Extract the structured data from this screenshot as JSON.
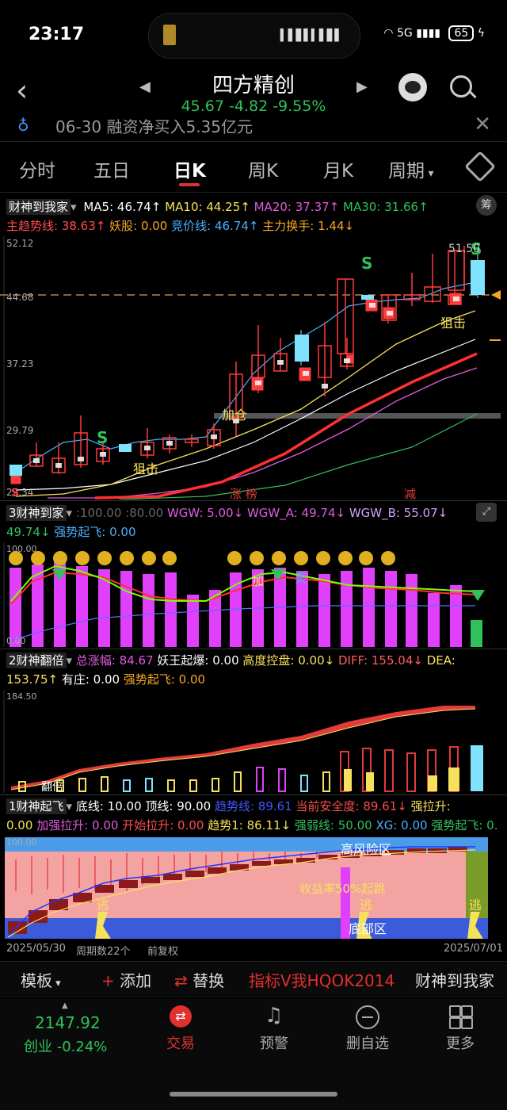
{
  "status": {
    "time": "23:17",
    "battery": "65",
    "network": "5G"
  },
  "header": {
    "title": "四方精创",
    "quote": "45.67 -4.82 -9.55%"
  },
  "notice": {
    "text": "06-30 融资净买入5.35亿元"
  },
  "tabs": [
    {
      "label": "分时"
    },
    {
      "label": "五日"
    },
    {
      "label": "日K"
    },
    {
      "label": "周K"
    },
    {
      "label": "月K"
    },
    {
      "label": "周期"
    }
  ],
  "main_indicator": {
    "name": "财神到我家",
    "ma5": "MA5: 46.74↑",
    "ma10": "MA10: 44.25↑",
    "ma20": "MA20: 37.37↑",
    "ma30": "MA30: 31.66↑",
    "line2a": "主趋势线: 38.63↑",
    "line2b": "妖股: 0.00",
    "line2c": "竞价线: 46.74↑",
    "line2d": "主力换手: 1.44↓",
    "chou": "筹"
  },
  "price_axis": [
    "52.12",
    "44.68",
    "37.23",
    "29.79",
    "22.34"
  ],
  "chart_labels": {
    "s": "S",
    "zhuji": "狙击",
    "jiacang": "加仓",
    "zhangbang": "涨 榜",
    "jian": "减",
    "high": "51.50"
  },
  "p3": {
    "name": "3财神到家",
    "params": ":100.00 :80.00",
    "wgw": "WGW: 5.00↓",
    "wgwa": "WGW_A: 49.74↓",
    "wgwb": "WGW_B: 55.07↓",
    "line2a": "49.74↓",
    "line2b": "强势起飞: 0.00",
    "axis_top": "100.00",
    "axis_bot": "0.00",
    "jia": "加",
    "mai": "卖"
  },
  "p2": {
    "name": "2财神翻倍",
    "a": "总涨幅: 84.67",
    "b": "妖王起爆: 0.00",
    "c": "高度控盘: 0.00↓",
    "d": "DIFF: 155.04↓",
    "e": "DEA:",
    "f": "153.75↑",
    "g": "有庄: 0.00",
    "h": "强势起飞: 0.00",
    "axis_top": "184.50",
    "label_bottom": "翻倍"
  },
  "p1": {
    "name": "1财神起飞",
    "a": "底线: 10.00",
    "b": "顶线: 90.00",
    "c": "趋势线: 89.61",
    "d": "当前安全度: 89.61↓",
    "e": "强拉升:",
    "f": "0.00",
    "g": "加强拉升: 0.00",
    "h": "开始拉升: 0.00",
    "i": "趋势1: 86.11↓",
    "j": "强弱线: 50.00",
    "k": "XG: 0.00",
    "l": "强势起飞: 0.",
    "axis_top": "100.00",
    "high_risk": "高风险区",
    "profit": "收益率50%起跳",
    "low": "底部区",
    "escape": "逃"
  },
  "date_bar": {
    "start": "2025/05/30",
    "period": "周期数22个",
    "adjust": "前复权",
    "end": "2025/07/01"
  },
  "toolbar": {
    "template": "模板",
    "add": "添加",
    "replace": "替换",
    "ind": "指标V我HQOK2014",
    "name": "财神到我家"
  },
  "bottom_nav": {
    "index_value": "2147.92",
    "index_name": "创业 -0.24%",
    "trade": "交易",
    "alert": "预警",
    "remove": "删自选",
    "more": "更多"
  },
  "colors": {
    "up": "#e33a3a",
    "down": "#2fc25b",
    "ma5": "#ffffff",
    "ma10": "#f6e15b",
    "ma20": "#e05be0",
    "ma30": "#2fc25b",
    "magenta": "#e040fb"
  }
}
